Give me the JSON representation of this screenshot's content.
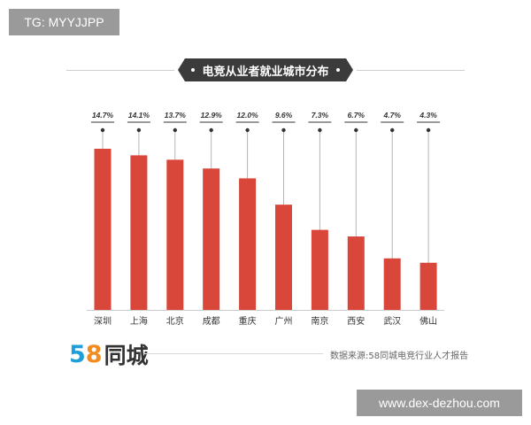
{
  "watermark_top": "TG: MYYJJPP",
  "watermark_bottom": "www.dex-dezhou.com",
  "logo": {
    "digit1": "5",
    "digit2": "8",
    "text": "同城"
  },
  "source": "数据来源:58同城电竞行业人才报告",
  "colors": {
    "bar": "#d9473b",
    "title_bg": "#3b3b3b",
    "logo_blue": "#1e9fd8",
    "logo_orange": "#f28c1f"
  },
  "chart_data": {
    "type": "bar",
    "title": "电竞从业者就业城市分布",
    "categories": [
      "深圳",
      "上海",
      "北京",
      "成都",
      "重庆",
      "广州",
      "南京",
      "西安",
      "武汉",
      "佛山"
    ],
    "values": [
      14.7,
      14.1,
      13.7,
      12.9,
      12.0,
      9.6,
      7.3,
      6.7,
      4.7,
      4.3
    ],
    "value_labels": [
      "14.7%",
      "14.1%",
      "13.7%",
      "12.9%",
      "12.0%",
      "9.6%",
      "7.3%",
      "6.7%",
      "4.7%",
      "4.3%"
    ],
    "unit": "%",
    "ylim": [
      0,
      14.7
    ],
    "grid": false,
    "legend": "none"
  }
}
